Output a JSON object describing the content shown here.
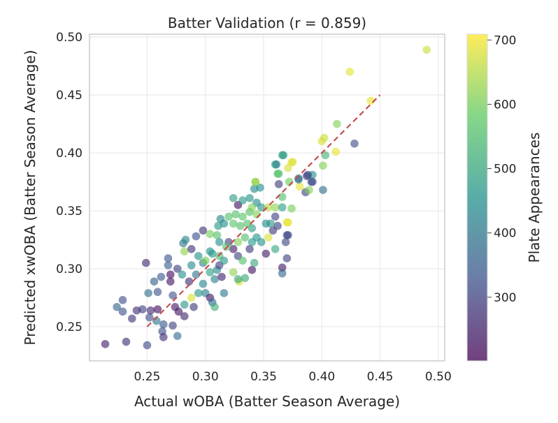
{
  "chart_data": {
    "type": "scatter",
    "title": "Batter Validation (r = 0.859)",
    "xlabel": "Actual wOBA (Batter Season Average)",
    "ylabel": "Predicted xwOBA (Batter Season Average)",
    "xlim": [
      0.2005,
      0.5055
    ],
    "ylim": [
      0.2205,
      0.5024
    ],
    "xticks": [
      "0.25",
      "0.30",
      "0.35",
      "0.40",
      "0.45",
      "0.50"
    ],
    "yticks": [
      "0.25",
      "0.30",
      "0.35",
      "0.40",
      "0.45",
      "0.50"
    ],
    "grid": true,
    "colormap": "viridis",
    "colorbar": {
      "label": "Plate Appearances",
      "range": [
        201,
        709
      ],
      "ticks": [
        "300",
        "400",
        "500",
        "600",
        "700"
      ]
    },
    "reference_line": {
      "style": "dashed",
      "color": "#c44e52",
      "from": [
        0.25,
        0.25
      ],
      "to": [
        0.45,
        0.45
      ]
    },
    "points": [
      [
        0.214,
        0.235,
        250
      ],
      [
        0.232,
        0.237,
        270
      ],
      [
        0.25,
        0.234,
        310
      ],
      [
        0.249,
        0.305,
        260
      ],
      [
        0.229,
        0.273,
        320
      ],
      [
        0.224,
        0.267,
        360
      ],
      [
        0.229,
        0.263,
        330
      ],
      [
        0.237,
        0.257,
        280
      ],
      [
        0.241,
        0.264,
        270
      ],
      [
        0.246,
        0.265,
        300
      ],
      [
        0.252,
        0.258,
        320
      ],
      [
        0.253,
        0.264,
        260
      ],
      [
        0.259,
        0.265,
        220
      ],
      [
        0.258,
        0.255,
        400
      ],
      [
        0.264,
        0.252,
        340
      ],
      [
        0.263,
        0.246,
        320
      ],
      [
        0.264,
        0.241,
        270
      ],
      [
        0.272,
        0.251,
        300
      ],
      [
        0.276,
        0.242,
        380
      ],
      [
        0.251,
        0.279,
        380
      ],
      [
        0.259,
        0.28,
        330
      ],
      [
        0.256,
        0.289,
        350
      ],
      [
        0.262,
        0.293,
        340
      ],
      [
        0.268,
        0.309,
        330
      ],
      [
        0.268,
        0.303,
        350
      ],
      [
        0.27,
        0.295,
        220
      ],
      [
        0.27,
        0.289,
        230
      ],
      [
        0.276,
        0.3,
        300
      ],
      [
        0.272,
        0.277,
        330
      ],
      [
        0.274,
        0.267,
        240
      ],
      [
        0.277,
        0.263,
        230
      ],
      [
        0.282,
        0.259,
        260
      ],
      [
        0.282,
        0.269,
        470
      ],
      [
        0.288,
        0.275,
        680
      ],
      [
        0.29,
        0.267,
        290
      ],
      [
        0.281,
        0.322,
        400
      ],
      [
        0.283,
        0.325,
        430
      ],
      [
        0.292,
        0.328,
        320
      ],
      [
        0.298,
        0.333,
        280
      ],
      [
        0.304,
        0.33,
        600
      ],
      [
        0.31,
        0.329,
        560
      ],
      [
        0.282,
        0.315,
        620
      ],
      [
        0.288,
        0.317,
        280
      ],
      [
        0.294,
        0.311,
        450
      ],
      [
        0.298,
        0.305,
        420
      ],
      [
        0.304,
        0.315,
        460
      ],
      [
        0.288,
        0.303,
        440
      ],
      [
        0.28,
        0.295,
        450
      ],
      [
        0.286,
        0.289,
        270
      ],
      [
        0.292,
        0.295,
        400
      ],
      [
        0.298,
        0.287,
        430
      ],
      [
        0.294,
        0.279,
        470
      ],
      [
        0.3,
        0.279,
        420
      ],
      [
        0.304,
        0.275,
        230
      ],
      [
        0.306,
        0.271,
        380
      ],
      [
        0.308,
        0.267,
        520
      ],
      [
        0.316,
        0.279,
        400
      ],
      [
        0.308,
        0.291,
        420
      ],
      [
        0.314,
        0.293,
        250
      ],
      [
        0.304,
        0.297,
        480
      ],
      [
        0.31,
        0.299,
        440
      ],
      [
        0.312,
        0.303,
        300
      ],
      [
        0.3,
        0.307,
        600
      ],
      [
        0.306,
        0.313,
        470
      ],
      [
        0.312,
        0.311,
        540
      ],
      [
        0.316,
        0.307,
        470
      ],
      [
        0.324,
        0.297,
        620
      ],
      [
        0.329,
        0.289,
        680
      ],
      [
        0.328,
        0.291,
        500
      ],
      [
        0.334,
        0.292,
        500
      ],
      [
        0.34,
        0.299,
        230
      ],
      [
        0.342,
        0.305,
        500
      ],
      [
        0.32,
        0.323,
        300
      ],
      [
        0.324,
        0.317,
        240
      ],
      [
        0.312,
        0.323,
        450
      ],
      [
        0.318,
        0.319,
        560
      ],
      [
        0.328,
        0.311,
        300
      ],
      [
        0.332,
        0.307,
        560
      ],
      [
        0.338,
        0.317,
        290
      ],
      [
        0.328,
        0.323,
        610
      ],
      [
        0.334,
        0.327,
        560
      ],
      [
        0.34,
        0.323,
        470
      ],
      [
        0.344,
        0.327,
        460
      ],
      [
        0.348,
        0.323,
        460
      ],
      [
        0.354,
        0.327,
        680
      ],
      [
        0.358,
        0.333,
        290
      ],
      [
        0.352,
        0.313,
        240
      ],
      [
        0.36,
        0.317,
        500
      ],
      [
        0.37,
        0.309,
        300
      ],
      [
        0.366,
        0.301,
        240
      ],
      [
        0.366,
        0.296,
        370
      ],
      [
        0.37,
        0.329,
        310
      ],
      [
        0.369,
        0.323,
        310
      ],
      [
        0.362,
        0.337,
        300
      ],
      [
        0.356,
        0.339,
        470
      ],
      [
        0.352,
        0.339,
        440
      ],
      [
        0.34,
        0.335,
        480
      ],
      [
        0.336,
        0.339,
        560
      ],
      [
        0.33,
        0.337,
        560
      ],
      [
        0.324,
        0.339,
        570
      ],
      [
        0.316,
        0.339,
        450
      ],
      [
        0.311,
        0.337,
        470
      ],
      [
        0.313,
        0.343,
        430
      ],
      [
        0.32,
        0.345,
        560
      ],
      [
        0.326,
        0.347,
        560
      ],
      [
        0.332,
        0.345,
        570
      ],
      [
        0.338,
        0.349,
        560
      ],
      [
        0.344,
        0.347,
        610
      ],
      [
        0.348,
        0.353,
        470
      ],
      [
        0.354,
        0.353,
        650
      ],
      [
        0.36,
        0.345,
        300
      ],
      [
        0.36,
        0.353,
        620
      ],
      [
        0.366,
        0.353,
        480
      ],
      [
        0.37,
        0.34,
        690
      ],
      [
        0.374,
        0.352,
        600
      ],
      [
        0.324,
        0.361,
        480
      ],
      [
        0.328,
        0.355,
        220
      ],
      [
        0.332,
        0.359,
        470
      ],
      [
        0.338,
        0.361,
        460
      ],
      [
        0.344,
        0.357,
        440
      ],
      [
        0.34,
        0.353,
        610
      ],
      [
        0.342,
        0.369,
        440
      ],
      [
        0.347,
        0.37,
        450
      ],
      [
        0.343,
        0.375,
        620
      ],
      [
        0.36,
        0.39,
        480
      ],
      [
        0.366,
        0.398,
        500
      ],
      [
        0.374,
        0.392,
        690
      ],
      [
        0.371,
        0.387,
        680
      ],
      [
        0.362,
        0.382,
        560
      ],
      [
        0.363,
        0.373,
        290
      ],
      [
        0.366,
        0.362,
        560
      ],
      [
        0.372,
        0.375,
        590
      ],
      [
        0.381,
        0.371,
        690
      ],
      [
        0.38,
        0.377,
        380
      ],
      [
        0.387,
        0.38,
        300
      ],
      [
        0.392,
        0.375,
        310
      ],
      [
        0.386,
        0.366,
        300
      ],
      [
        0.389,
        0.368,
        610
      ],
      [
        0.49,
        0.489,
        670
      ],
      [
        0.424,
        0.47,
        690
      ],
      [
        0.442,
        0.445,
        690
      ],
      [
        0.413,
        0.425,
        610
      ],
      [
        0.428,
        0.408,
        320
      ],
      [
        0.4,
        0.41,
        680
      ],
      [
        0.402,
        0.413,
        670
      ],
      [
        0.412,
        0.401,
        690
      ],
      [
        0.403,
        0.398,
        530
      ],
      [
        0.401,
        0.389,
        610
      ],
      [
        0.401,
        0.368,
        380
      ],
      [
        0.392,
        0.381,
        450
      ],
      [
        0.388,
        0.381,
        300
      ],
      [
        0.391,
        0.375,
        320
      ],
      [
        0.38,
        0.378,
        400
      ],
      [
        0.367,
        0.398,
        470
      ],
      [
        0.375,
        0.392,
        680
      ],
      [
        0.363,
        0.382,
        560
      ],
      [
        0.361,
        0.39,
        420
      ],
      [
        0.343,
        0.375,
        630
      ],
      [
        0.371,
        0.34,
        690
      ],
      [
        0.371,
        0.329,
        310
      ]
    ]
  }
}
